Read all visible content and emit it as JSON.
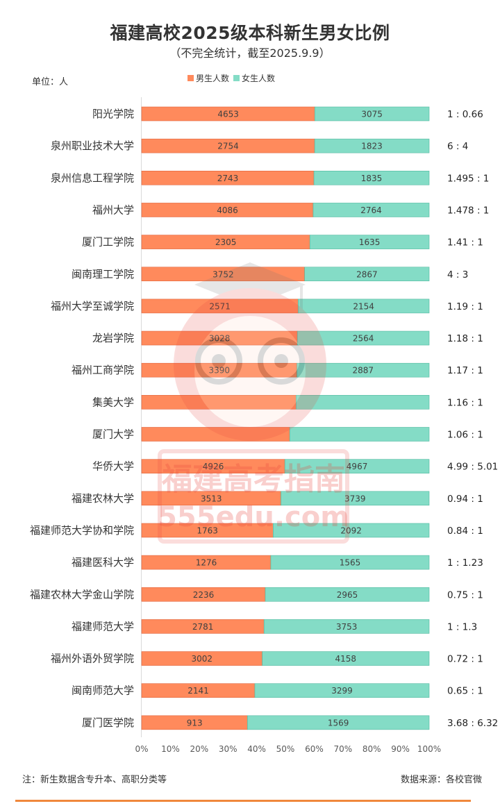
{
  "chart_data": {
    "type": "bar",
    "orientation": "horizontal",
    "stacking": "percent",
    "title": "福建高校2025级本科新生男女比例",
    "subtitle": "（不完全统计，截至2025.9.9）",
    "unit_label": "单位：人",
    "legend_position": "top",
    "categories": [
      "阳光学院",
      "泉州职业技术大学",
      "泉州信息工程学院",
      "福州大学",
      "厦门工学院",
      "闽南理工学院",
      "福州大学至诚学院",
      "龙岩学院",
      "福州工商学院",
      "集美大学",
      "厦门大学",
      "华侨大学",
      "福建农林大学",
      "福建师范大学协和学院",
      "福建医科大学",
      "福建农林大学金山学院",
      "福建师范大学",
      "福州外语外贸学院",
      "闽南师范大学",
      "厦门医学院"
    ],
    "series": [
      {
        "name": "男生人数",
        "color": "#ff8a5c",
        "values": [
          4653,
          2754,
          2743,
          4086,
          2305,
          3752,
          2571,
          3028,
          3390,
          null,
          null,
          4926,
          3513,
          1763,
          1276,
          2236,
          2781,
          3002,
          2141,
          913
        ],
        "percent": [
          0.602,
          0.602,
          0.599,
          0.597,
          0.585,
          0.567,
          0.544,
          0.541,
          0.54,
          0.537,
          0.515,
          0.498,
          0.484,
          0.457,
          0.449,
          0.43,
          0.426,
          0.419,
          0.394,
          0.368
        ]
      },
      {
        "name": "女生人数",
        "color": "#84dcc6",
        "values": [
          3075,
          1823,
          1835,
          2764,
          1635,
          2867,
          2154,
          2564,
          2887,
          null,
          null,
          4967,
          3739,
          2092,
          1565,
          2965,
          3753,
          4158,
          3299,
          1569
        ]
      }
    ],
    "ratios": [
      "1 : 0.66",
      "6 : 4",
      "1.495 : 1",
      "1.478 : 1",
      "1.41 : 1",
      "4 : 3",
      "1.19 : 1",
      "1.18 : 1",
      "1.17 : 1",
      "1.16 : 1",
      "1.06 : 1",
      "4.99 : 5.01",
      "0.94 : 1",
      "0.84 : 1",
      "1 : 1.23",
      "0.75 : 1",
      "1 : 1.3",
      "0.72 : 1",
      "0.65 : 1",
      "3.68 : 6.32"
    ],
    "x_ticks": [
      "0%",
      "10%",
      "20%",
      "30%",
      "40%",
      "50%",
      "60%",
      "70%",
      "80%",
      "90%",
      "100%"
    ],
    "xlim": [
      0,
      1
    ],
    "grid": false
  },
  "footnote": "注：新生数据含专升本、高职分类等",
  "source": "数据来源：各校官微",
  "watermark": {
    "line1": "福建高考指南",
    "line2": "555edu.com"
  }
}
